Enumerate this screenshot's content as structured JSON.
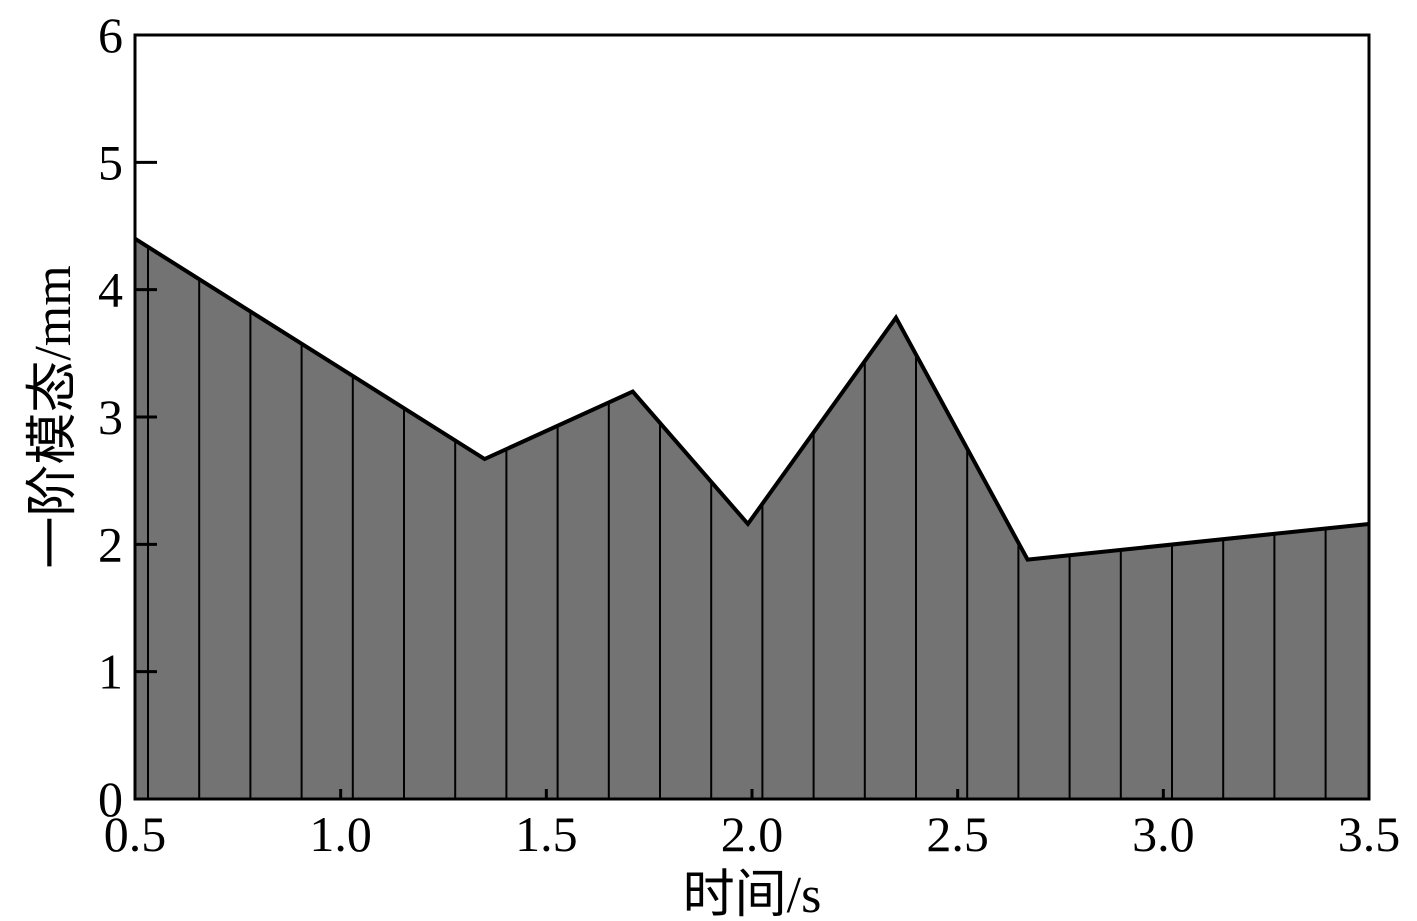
{
  "chart_data": {
    "type": "area",
    "x": [
      0.5,
      1.35,
      1.71,
      1.99,
      2.35,
      2.67,
      3.5
    ],
    "y": [
      4.4,
      2.67,
      3.2,
      2.16,
      3.78,
      1.88,
      2.16
    ],
    "xlim": [
      0.5,
      3.5
    ],
    "ylim": [
      0,
      6
    ],
    "xticks": [
      "0.5",
      "1.0",
      "1.5",
      "2.0",
      "2.5",
      "3.0",
      "3.5"
    ],
    "yticks": [
      "0",
      "1",
      "2",
      "3",
      "4",
      "5",
      "6"
    ],
    "xlabel": "时间/s",
    "ylabel": "一阶模态/mm",
    "grid": false,
    "fill_color": "#737373",
    "line_color": "#000000",
    "hatch": "vertical lines"
  }
}
